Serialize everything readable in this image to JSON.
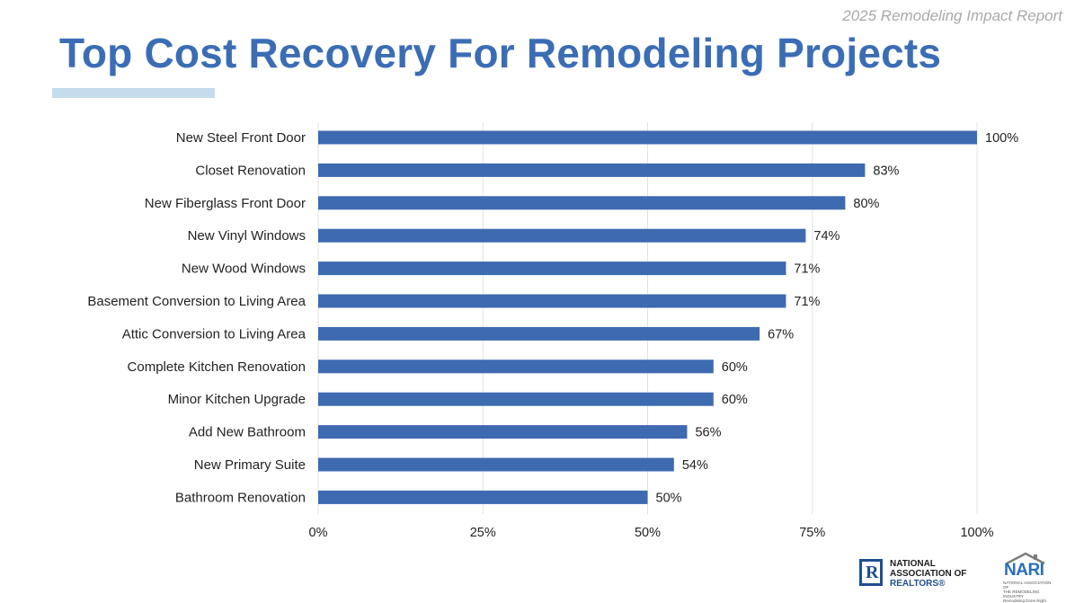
{
  "header": {
    "report_label": "2025 Remodeling Impact Report",
    "title": "Top Cost Recovery For Remodeling Projects"
  },
  "colors": {
    "title": "#3b6db5",
    "bar": "#3d6ab0",
    "underline": "#c5dcec",
    "gridline": "#e3e3e3"
  },
  "chart_data": {
    "type": "bar",
    "orientation": "horizontal",
    "title": "Top Cost Recovery For Remodeling Projects",
    "categories": [
      "New Steel Front Door",
      "Closet Renovation",
      "New Fiberglass Front Door",
      "New Vinyl Windows",
      "New Wood Windows",
      "Basement Conversion to Living Area",
      "Attic Conversion to Living Area",
      "Complete Kitchen Renovation",
      "Minor Kitchen Upgrade",
      "Add New Bathroom",
      "New Primary Suite",
      "Bathroom Renovation"
    ],
    "values": [
      100,
      83,
      80,
      74,
      71,
      71,
      67,
      60,
      60,
      56,
      54,
      50
    ],
    "value_labels": [
      "100%",
      "83%",
      "80%",
      "74%",
      "71%",
      "71%",
      "67%",
      "60%",
      "60%",
      "56%",
      "54%",
      "50%"
    ],
    "xlim": [
      0,
      100
    ],
    "x_ticks": [
      0,
      25,
      50,
      75,
      100
    ],
    "x_tick_labels": [
      "0%",
      "25%",
      "50%",
      "75%",
      "100%"
    ],
    "xlabel": "",
    "ylabel": "",
    "grid": "vertical",
    "legend": "none"
  },
  "footer": {
    "nar_logo": {
      "line1": "NATIONAL",
      "line2": "ASSOCIATION OF",
      "line3": "REALTORS®"
    },
    "nari_logo": {
      "word": "NARI",
      "sub1": "NATIONAL ASSOCIATION OF",
      "sub2": "THE REMODELING INDUSTRY",
      "sub3": "Remodeling Done Right."
    }
  }
}
